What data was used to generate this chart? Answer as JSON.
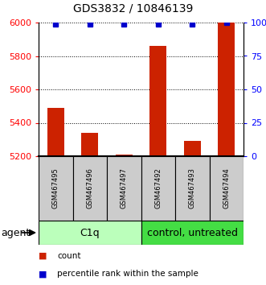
{
  "title": "GDS3832 / 10846139",
  "samples": [
    "GSM467495",
    "GSM467496",
    "GSM467497",
    "GSM467492",
    "GSM467493",
    "GSM467494"
  ],
  "count_values": [
    5490,
    5340,
    5210,
    5860,
    5290,
    6000
  ],
  "percentile_values": [
    99,
    99,
    99,
    99,
    99,
    100
  ],
  "ylim_left": [
    5200,
    6000
  ],
  "ylim_right": [
    0,
    100
  ],
  "left_ticks": [
    5200,
    5400,
    5600,
    5800,
    6000
  ],
  "right_ticks": [
    0,
    25,
    50,
    75,
    100
  ],
  "right_tick_labels": [
    "0",
    "25",
    "50",
    "75",
    "100%"
  ],
  "bar_color": "#cc2200",
  "dot_color": "#0000cc",
  "group1_samples": [
    0,
    1,
    2
  ],
  "group2_samples": [
    3,
    4,
    5
  ],
  "group1_label": "C1q",
  "group2_label": "control, untreated",
  "group_row_label": "agent",
  "group1_color": "#bbffbb",
  "group2_color": "#44dd44",
  "sample_box_color": "#cccccc",
  "legend_count_label": "count",
  "legend_pct_label": "percentile rank within the sample",
  "bar_width": 0.5
}
